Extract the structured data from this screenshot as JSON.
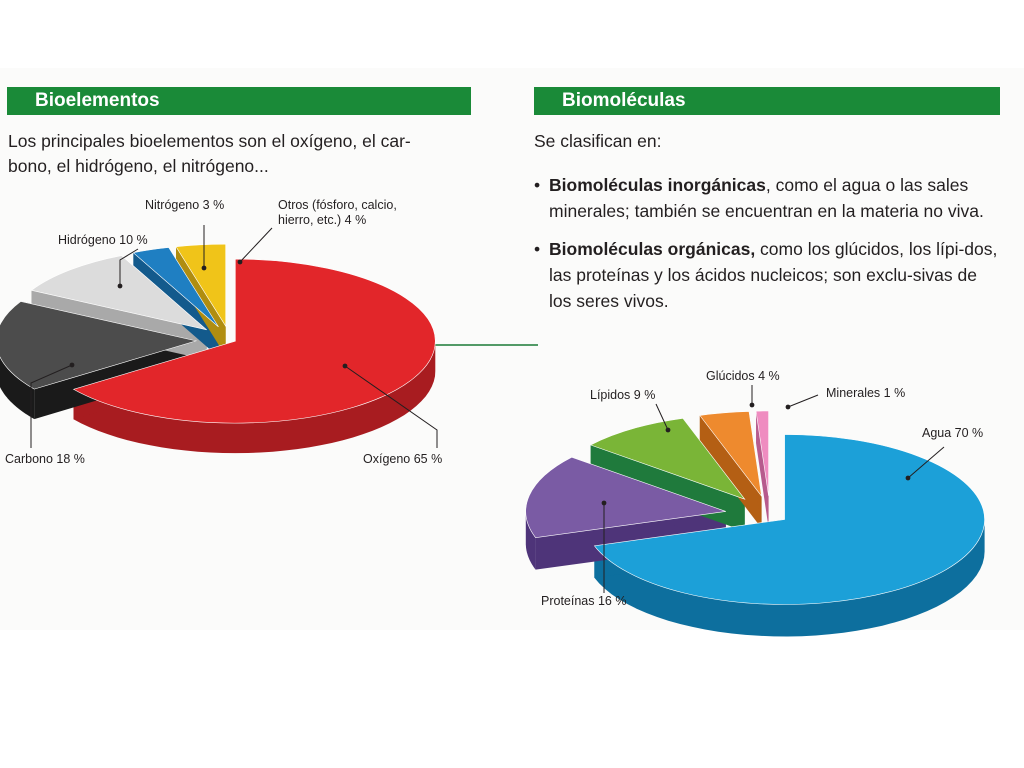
{
  "bioelementos": {
    "header": "Bioelementos",
    "intro": "Los principales bioelementos son el oxígeno, el car-\nbono, el hidrógeno, el nitrógeno..."
  },
  "biomoleculas": {
    "header": "Biomoléculas",
    "intro": "Se clasifican en:",
    "bullets": [
      {
        "term": "Biomoléculas inorgánicas",
        "rest": ", como el agua o las sales minerales; también se encuentran en la materia no viva."
      },
      {
        "term": "Biomoléculas orgánicas,",
        "rest": " como los glúcidos, los lípi-dos, las proteínas y los ácidos nucleicos; son exclu-sivas de los seres vivos."
      }
    ]
  },
  "chart_data": [
    {
      "type": "pie",
      "title": "",
      "categories": [
        "Oxígeno",
        "Carbono",
        "Hidrógeno",
        "Nitrógeno",
        "Otros (fósforo, calcio, hierro, etc.)"
      ],
      "values": [
        65,
        18,
        10,
        3,
        4
      ],
      "labels": [
        "Oxígeno 65 %",
        "Carbono 18 %",
        "Hidrógeno 10 %",
        "Nitrógeno 3 %",
        [
          "Otros (fósforo, calcio,",
          "hierro, etc.) 4 %"
        ]
      ],
      "colors": [
        "#e2262a",
        "#4c4c4c",
        "#dcdcdc",
        "#1f7fc2",
        "#f0c419"
      ],
      "side_colors": [
        "#a81c20",
        "#1a1a1a",
        "#a9a9a9",
        "#135a8c",
        "#b08d10"
      ]
    },
    {
      "type": "pie",
      "title": "",
      "categories": [
        "Agua",
        "Proteínas",
        "Lípidos",
        "Glúcidos",
        "Minerales"
      ],
      "values": [
        70,
        16,
        9,
        4,
        1
      ],
      "labels": [
        "Agua 70 %",
        "Proteínas 16 %",
        "Lípidos 9 %",
        "Glúcidos 4 %",
        "Minerales 1 %"
      ],
      "colors": [
        "#1ca0d8",
        "#7a5ba4",
        "#7ab537",
        "#ee8a2e",
        "#ef8cc0"
      ],
      "side_colors": [
        "#0d6f9e",
        "#4e3479",
        "#1f7a3c",
        "#b45f14",
        "#b75b8d"
      ]
    }
  ]
}
